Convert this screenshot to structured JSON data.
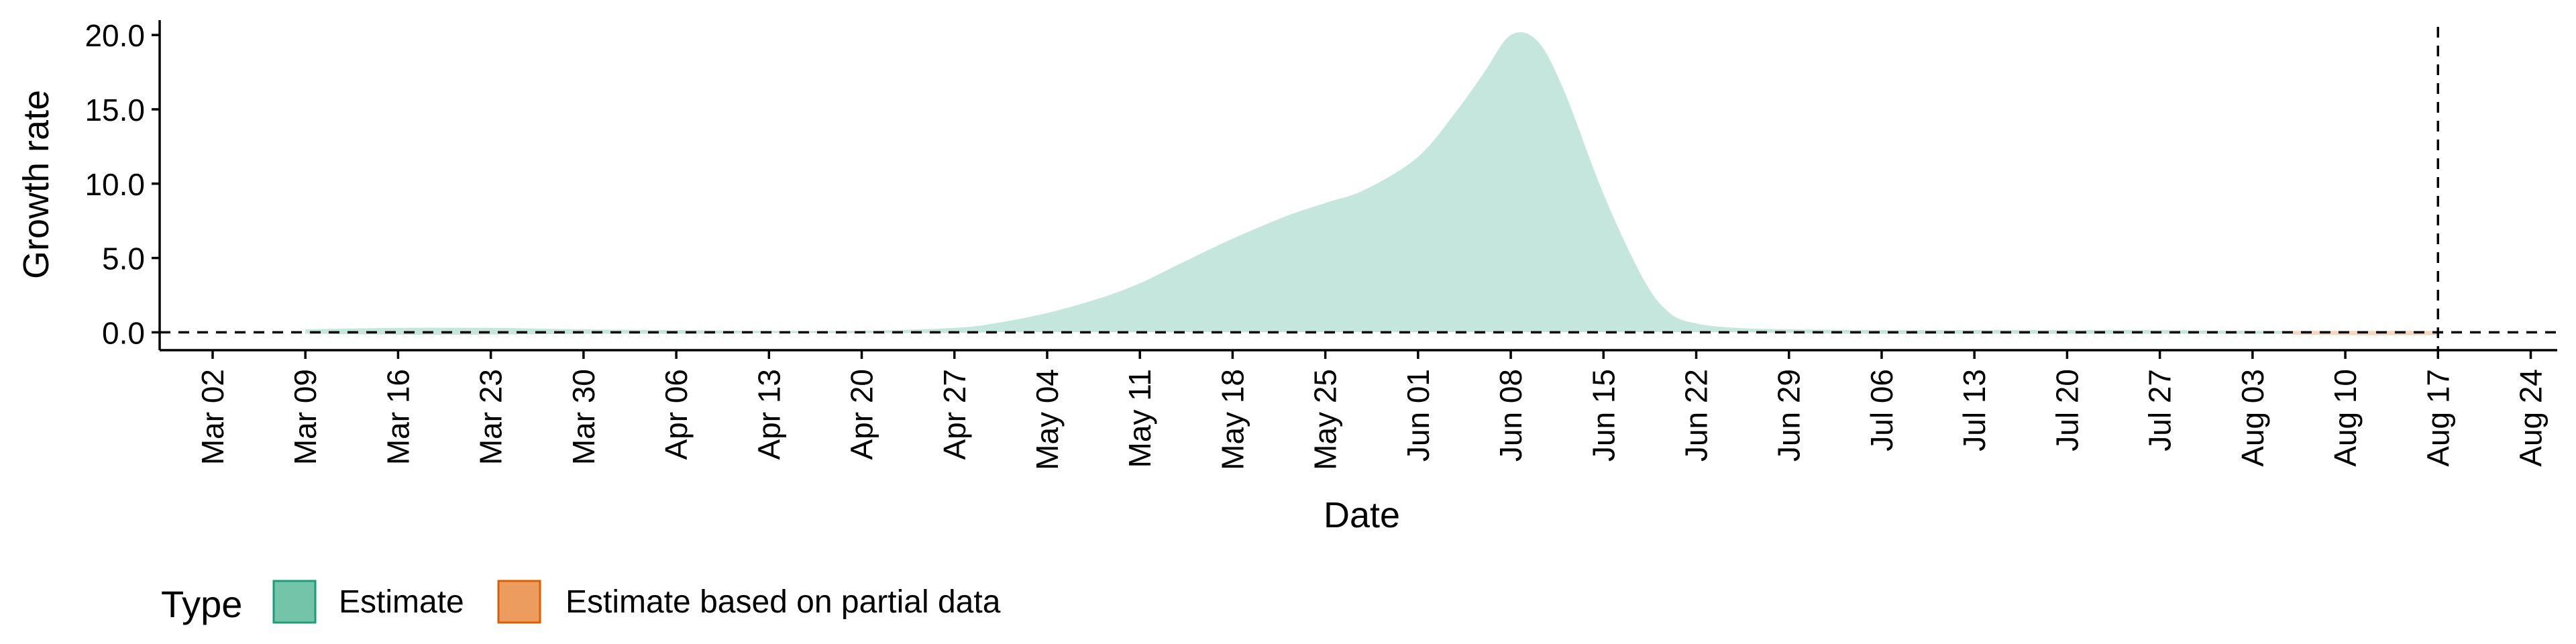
{
  "chart_data": {
    "type": "area",
    "xlabel": "Date",
    "ylabel": "Growth rate",
    "ylim": [
      -1.2,
      21.0
    ],
    "xlim": [
      "2020-02-27",
      "2020-08-26"
    ],
    "y_ticks": [
      0.0,
      5.0,
      10.0,
      15.0,
      20.0
    ],
    "y_tick_labels": [
      "0.0",
      "5.0",
      "10.0",
      "15.0",
      "20.0"
    ],
    "x_ticks": [
      "2020-03-02",
      "2020-03-09",
      "2020-03-16",
      "2020-03-23",
      "2020-03-30",
      "2020-04-06",
      "2020-04-13",
      "2020-04-20",
      "2020-04-27",
      "2020-05-04",
      "2020-05-11",
      "2020-05-18",
      "2020-05-25",
      "2020-06-01",
      "2020-06-08",
      "2020-06-15",
      "2020-06-22",
      "2020-06-29",
      "2020-07-06",
      "2020-07-13",
      "2020-07-20",
      "2020-07-27",
      "2020-08-03",
      "2020-08-10",
      "2020-08-17",
      "2020-08-24"
    ],
    "x_tick_labels": [
      "Mar 02",
      "Mar 09",
      "Mar 16",
      "Mar 23",
      "Mar 30",
      "Apr 06",
      "Apr 13",
      "Apr 20",
      "Apr 27",
      "May 04",
      "May 11",
      "May 18",
      "May 25",
      "Jun 01",
      "Jun 08",
      "Jun 15",
      "Jun 22",
      "Jun 29",
      "Jul 06",
      "Jul 13",
      "Jul 20",
      "Jul 27",
      "Aug 03",
      "Aug 10",
      "Aug 17",
      "Aug 24"
    ],
    "reference_lines": {
      "horizontal_y": 0.0,
      "vertical_x": "2020-08-17",
      "style": "dashed"
    },
    "series": [
      {
        "name": "Estimate",
        "color": "#1b9e77",
        "fill_opacity": 0.26,
        "x": [
          "2020-03-09",
          "2020-03-16",
          "2020-03-23",
          "2020-03-30",
          "2020-04-06",
          "2020-04-13",
          "2020-04-20",
          "2020-04-27",
          "2020-04-30",
          "2020-05-04",
          "2020-05-08",
          "2020-05-11",
          "2020-05-14",
          "2020-05-18",
          "2020-05-22",
          "2020-05-25",
          "2020-05-28",
          "2020-06-01",
          "2020-06-04",
          "2020-06-06",
          "2020-06-08",
          "2020-06-10",
          "2020-06-12",
          "2020-06-15",
          "2020-06-18",
          "2020-06-20",
          "2020-06-22",
          "2020-06-25",
          "2020-06-29",
          "2020-07-06",
          "2020-07-13",
          "2020-07-20",
          "2020-07-27",
          "2020-08-03",
          "2020-08-06"
        ],
        "lower": [
          -0.1,
          -0.15,
          -0.15,
          -0.1,
          -0.1,
          -0.05,
          -0.05,
          -0.05,
          0.0,
          0.0,
          0.0,
          0.0,
          0.0,
          0.0,
          0.0,
          0.0,
          0.0,
          0.0,
          0.0,
          0.0,
          0.0,
          0.0,
          0.0,
          0.0,
          0.0,
          0.0,
          0.0,
          0.0,
          -0.05,
          -0.1,
          -0.1,
          -0.1,
          -0.1,
          -0.1,
          -0.1
        ],
        "upper": [
          0.2,
          0.3,
          0.3,
          0.2,
          0.15,
          0.1,
          0.1,
          0.3,
          0.6,
          1.3,
          2.3,
          3.3,
          4.6,
          6.3,
          7.8,
          8.7,
          9.6,
          11.8,
          15.0,
          17.5,
          20.0,
          19.6,
          16.3,
          9.3,
          3.6,
          1.3,
          0.6,
          0.3,
          0.2,
          0.15,
          0.15,
          0.15,
          0.15,
          0.1,
          0.1
        ]
      },
      {
        "name": "Estimate based on partial data",
        "color": "#d95f02",
        "fill_opacity": 0.26,
        "x": [
          "2020-08-06",
          "2020-08-10",
          "2020-08-14",
          "2020-08-17"
        ],
        "lower": [
          -0.15,
          -0.2,
          -0.2,
          -0.2
        ],
        "upper": [
          0.1,
          0.1,
          0.1,
          0.1
        ]
      }
    ]
  },
  "legend": {
    "title": "Type",
    "items": [
      {
        "label": "Estimate",
        "fill": "#73c4a8",
        "stroke": "#1b9e77"
      },
      {
        "label": "Estimate based on partial data",
        "fill": "#ec9c5e",
        "stroke": "#d95f02"
      }
    ]
  }
}
